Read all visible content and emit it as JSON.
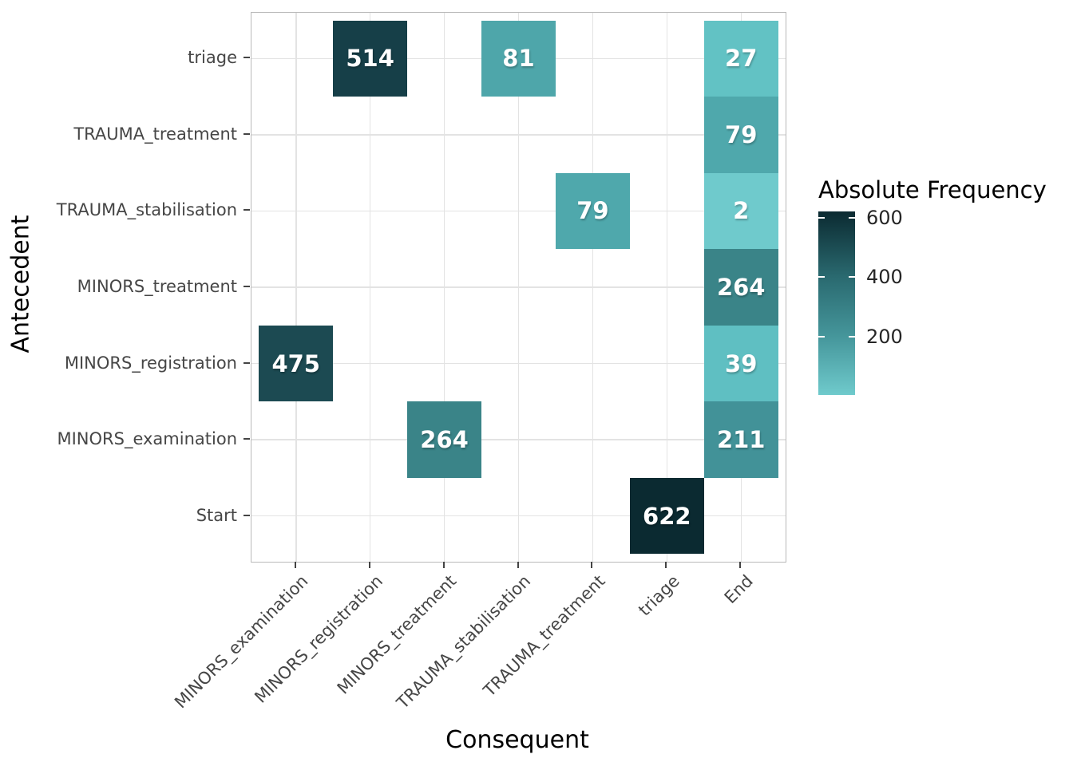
{
  "chart_data": {
    "type": "heatmap",
    "xlabel": "Consequent",
    "ylabel": "Antecedent",
    "x_categories": [
      "MINORS_examination",
      "MINORS_registration",
      "MINORS_treatment",
      "TRAUMA_stabilisation",
      "TRAUMA_treatment",
      "triage",
      "End"
    ],
    "y_categories_top_to_bottom": [
      "triage",
      "TRAUMA_treatment",
      "TRAUMA_stabilisation",
      "MINORS_treatment",
      "MINORS_registration",
      "MINORS_examination",
      "Start"
    ],
    "cells": [
      {
        "antecedent": "triage",
        "consequent": "MINORS_registration",
        "value": 514,
        "color": "#163F48"
      },
      {
        "antecedent": "triage",
        "consequent": "TRAUMA_stabilisation",
        "value": 81,
        "color": "#4EA6AA"
      },
      {
        "antecedent": "triage",
        "consequent": "End",
        "value": 27,
        "color": "#62C2C4"
      },
      {
        "antecedent": "TRAUMA_treatment",
        "consequent": "End",
        "value": 79,
        "color": "#4FA8AC"
      },
      {
        "antecedent": "TRAUMA_stabilisation",
        "consequent": "TRAUMA_treatment",
        "value": 79,
        "color": "#4FA8AC"
      },
      {
        "antecedent": "TRAUMA_stabilisation",
        "consequent": "End",
        "value": 2,
        "color": "#6FCACC"
      },
      {
        "antecedent": "MINORS_treatment",
        "consequent": "End",
        "value": 264,
        "color": "#3A8488"
      },
      {
        "antecedent": "MINORS_registration",
        "consequent": "MINORS_examination",
        "value": 475,
        "color": "#1C4A52"
      },
      {
        "antecedent": "MINORS_registration",
        "consequent": "End",
        "value": 39,
        "color": "#5FBFC2"
      },
      {
        "antecedent": "MINORS_examination",
        "consequent": "MINORS_treatment",
        "value": 264,
        "color": "#3A8488"
      },
      {
        "antecedent": "MINORS_examination",
        "consequent": "End",
        "value": 211,
        "color": "#429298"
      },
      {
        "antecedent": "Start",
        "consequent": "triage",
        "value": 622,
        "color": "#0B2A31"
      }
    ],
    "legend": {
      "title": "Absolute Frequency",
      "tick_values": [
        600,
        400,
        200
      ],
      "min_value": 2,
      "max_value": 622,
      "gradient_stops": [
        {
          "value": 622,
          "color": "#0B2A31"
        },
        {
          "value": 400,
          "color": "#2A6A70"
        },
        {
          "value": 200,
          "color": "#45969B"
        },
        {
          "value": 2,
          "color": "#6FCACC"
        }
      ],
      "position": "right"
    },
    "style_colors": {
      "cell_text": "#FFFFFF",
      "axis_text": "#464646",
      "axis_title": "#000000",
      "gridline": "#E3E3E3",
      "panel_border": "#B9B9B9",
      "background": "#FFFFFF"
    },
    "layout_hints": {
      "grid": "major gridlines at category centers",
      "x_tick_label_angle_deg": 45
    }
  }
}
